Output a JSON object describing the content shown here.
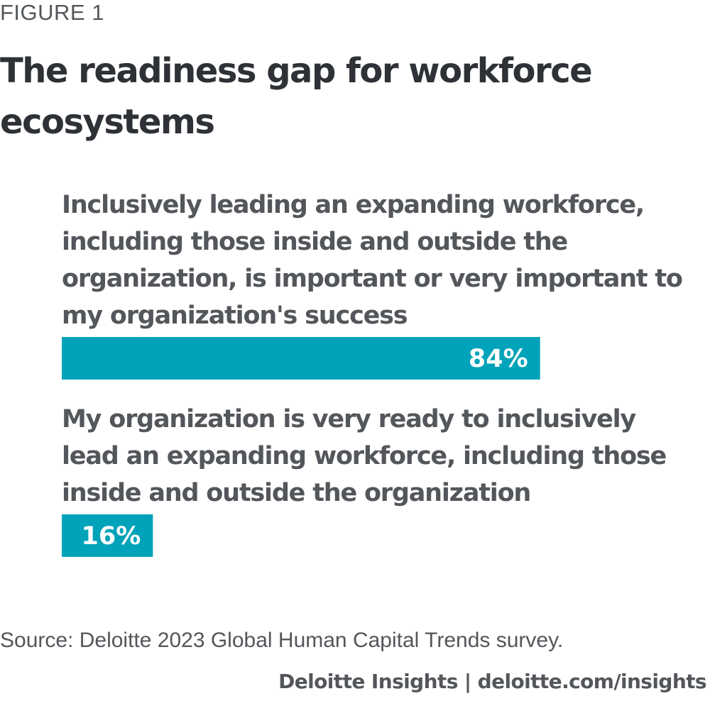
{
  "figure_label": "FIGURE 1",
  "chart_data": {
    "type": "bar",
    "orientation": "horizontal",
    "title": "The readiness gap for workforce ecosystems",
    "categories": [
      "Inclusively leading an expanding workforce, including those inside and outside the organization, is important or very important to my organization's success",
      "My organization is very ready to inclusively lead an expanding workforce, including those inside and outside the organization"
    ],
    "category_lines": [
      [
        "Inclusively leading an expanding workforce,",
        "including those inside and outside the",
        "organization, is important or very important to",
        "my organization's success"
      ],
      [
        "My organization is very ready to inclusively",
        "lead an expanding workforce, including those",
        "inside and outside the organization"
      ]
    ],
    "values": [
      84,
      16
    ],
    "data_labels": [
      "84%",
      "16%"
    ],
    "xlim": [
      0,
      100
    ],
    "bar_color": "#00a3b9",
    "label_color": "#ffffff",
    "category_text_color": "#53565a",
    "grid": false,
    "legend": "none"
  },
  "source": "Source: Deloitte 2023 Global Human Capital Trends survey.",
  "brand": "Deloitte Insights | deloitte.com/insights"
}
